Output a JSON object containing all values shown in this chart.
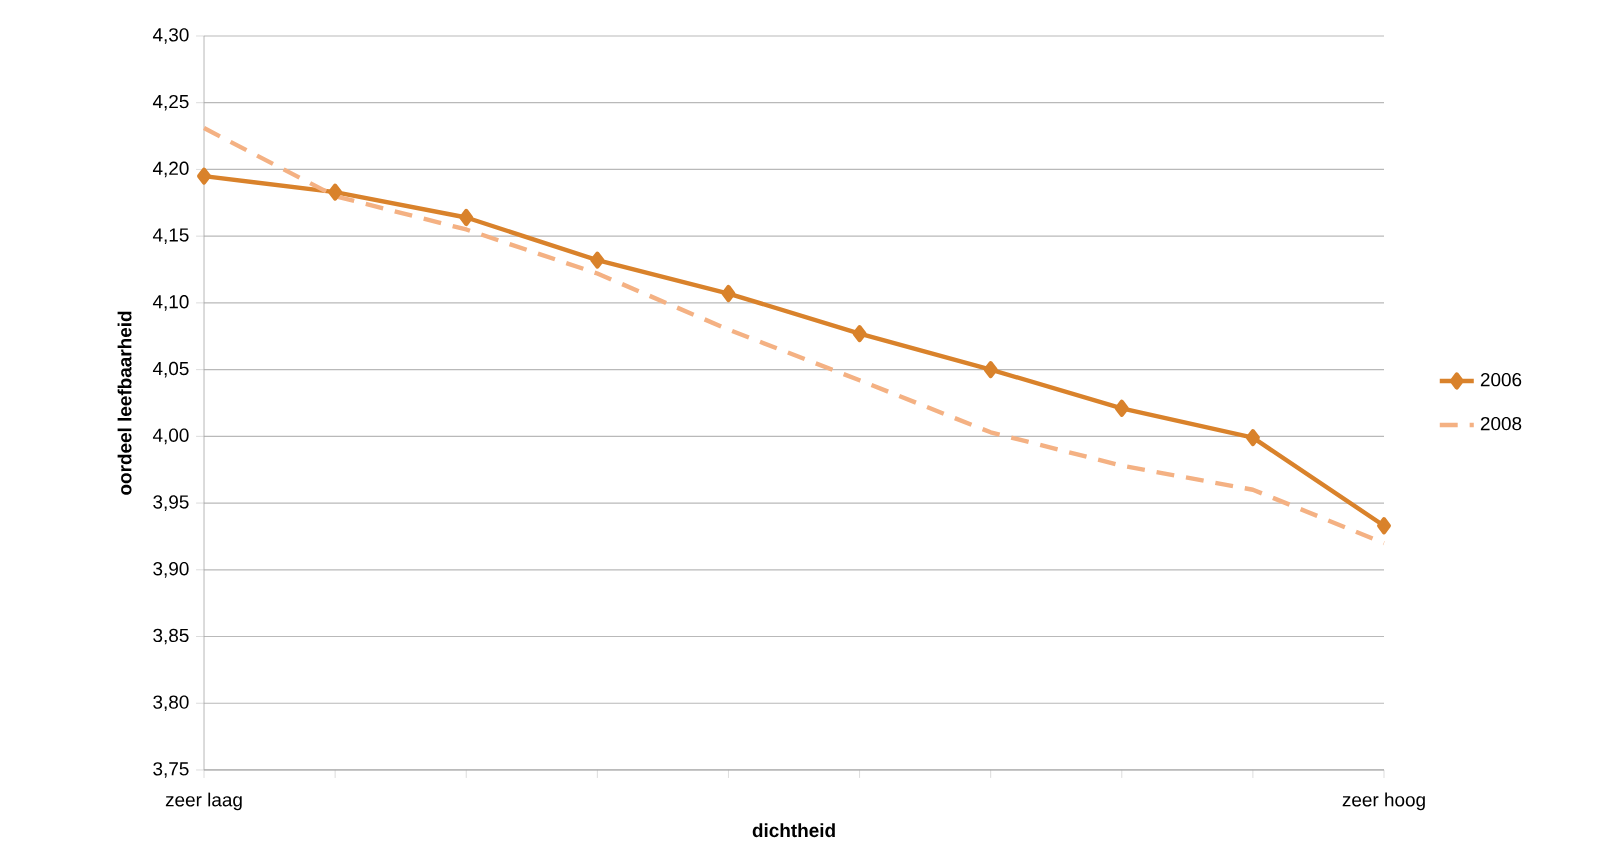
{
  "chart_data": {
    "type": "line",
    "xlabel": "dichtheid",
    "ylabel": "oordeel leefbaarheid",
    "categories": [
      "zeer laag",
      null,
      null,
      null,
      null,
      null,
      null,
      null,
      null,
      "zeer hoog"
    ],
    "series": [
      {
        "name": "2006",
        "color": "#d9822b",
        "marker": "diamond",
        "line_style": "solid",
        "values": [
          4.195,
          4.183,
          4.164,
          4.132,
          4.107,
          4.077,
          4.05,
          4.021,
          3.999,
          3.933
        ]
      },
      {
        "name": "2008",
        "color": "#f4b183",
        "marker": "none",
        "line_style": "dashed",
        "values": [
          4.231,
          4.18,
          4.155,
          4.122,
          4.08,
          4.042,
          4.003,
          3.978,
          3.96,
          3.92
        ]
      }
    ],
    "ylim": [
      3.75,
      4.3
    ],
    "yticks": [
      {
        "value": 3.75,
        "label": "3,75"
      },
      {
        "value": 3.8,
        "label": "3,80"
      },
      {
        "value": 3.85,
        "label": "3,85"
      },
      {
        "value": 3.9,
        "label": "3,90"
      },
      {
        "value": 3.95,
        "label": "3,95"
      },
      {
        "value": 4.0,
        "label": "4,00"
      },
      {
        "value": 4.05,
        "label": "4,05"
      },
      {
        "value": 4.1,
        "label": "4,10"
      },
      {
        "value": 4.15,
        "label": "4,15"
      },
      {
        "value": 4.2,
        "label": "4,20"
      },
      {
        "value": 4.25,
        "label": "4,25"
      },
      {
        "value": 4.3,
        "label": "4,30"
      }
    ],
    "grid": "y",
    "legend": "right"
  }
}
